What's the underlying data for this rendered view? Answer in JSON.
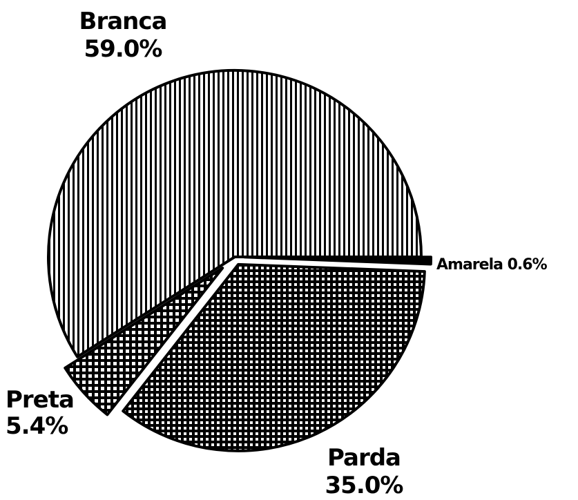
{
  "chart_data": {
    "type": "pie",
    "title": "",
    "slices": [
      {
        "label": "Branca",
        "value": 59.0,
        "value_text": "59.0%",
        "pattern": "vertical-stripes"
      },
      {
        "label": "Amarela",
        "value": 0.6,
        "value_text": "0.6%",
        "pattern": "solid-black"
      },
      {
        "label": "Parda",
        "value": 35.0,
        "value_text": "35.0%",
        "pattern": "crosshatch-fine"
      },
      {
        "label": "Preta",
        "value": 5.4,
        "value_text": "5.4%",
        "pattern": "crosshatch-coarse"
      }
    ],
    "colors": {
      "ink": "#000000",
      "paper": "#ffffff"
    }
  }
}
